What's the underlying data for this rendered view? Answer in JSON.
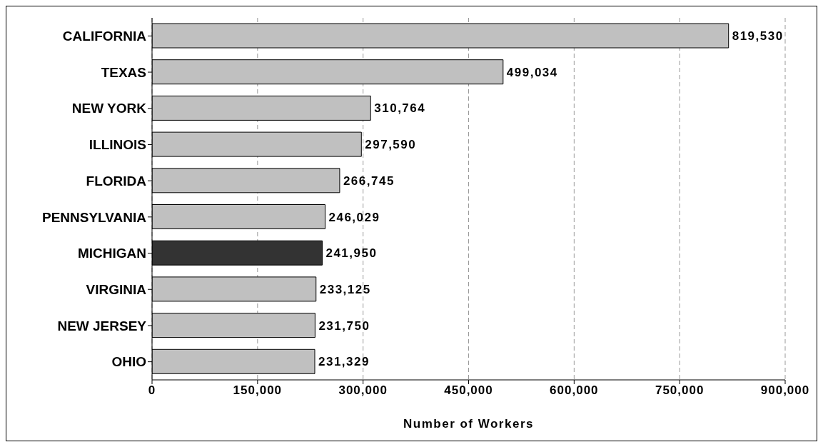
{
  "chart_data": {
    "type": "bar",
    "orientation": "horizontal",
    "xlabel": "Number of Workers",
    "categories": [
      "CALIFORNIA",
      "TEXAS",
      "NEW YORK",
      "ILLINOIS",
      "FLORIDA",
      "PENNSYLVANIA",
      "MICHIGAN",
      "VIRGINIA",
      "NEW JERSEY",
      "OHIO"
    ],
    "values": [
      819530,
      499034,
      310764,
      297590,
      266745,
      246029,
      241950,
      233125,
      231750,
      231329
    ],
    "value_labels": [
      "819,530",
      "499,034",
      "310,764",
      "297,590",
      "266,745",
      "246,029",
      "241,950",
      "233,125",
      "231,750",
      "231,329"
    ],
    "colors": [
      "#c0c0c0",
      "#c0c0c0",
      "#c0c0c0",
      "#c0c0c0",
      "#c0c0c0",
      "#c0c0c0",
      "#333333",
      "#c0c0c0",
      "#c0c0c0",
      "#c0c0c0"
    ],
    "xlim": [
      0,
      900000
    ],
    "xticks": [
      0,
      {
        "value": 150000,
        "label": "150,000"
      },
      {
        "value": 300000,
        "label": "300,000"
      },
      {
        "value": 450000,
        "label": "450,000"
      },
      {
        "value": 600000,
        "label": "600,000"
      },
      {
        "value": 750000,
        "label": "750,000"
      },
      {
        "value": 900000,
        "label": "900,000"
      }
    ],
    "grid": "x"
  }
}
